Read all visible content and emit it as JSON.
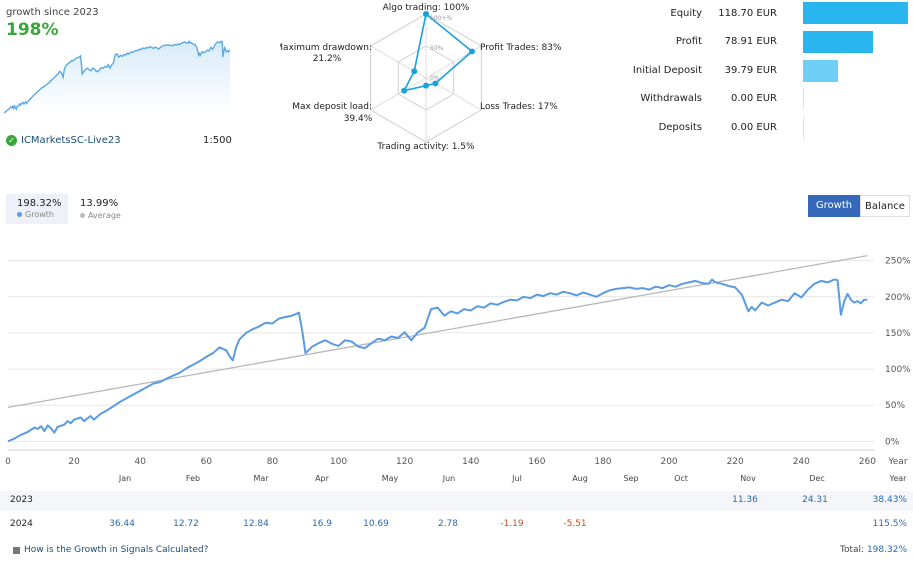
{
  "header": {
    "growth_since": "growth since 2023",
    "growth_value": "198%",
    "account_name": "ICMarketsSC-Live23",
    "leverage": "1:500",
    "mini_chart_color": "#5aa9e6"
  },
  "radar": {
    "labels": {
      "algo": "Algo trading: 100%",
      "profit": "Profit Trades: 83%",
      "loss": "Loss Trades: 17%",
      "activity": "Trading activity: 1.5%",
      "load_name": "Max deposit load:",
      "load_value": "39.4%",
      "drawdown_name": "Maximum drawdown:",
      "drawdown_value": "21.2%"
    },
    "scale_labels": [
      "100+%",
      "50%",
      "0%"
    ],
    "values": [
      100,
      83,
      17,
      1.5,
      39.4,
      21.2
    ],
    "color": "#1aa3d9"
  },
  "stats": [
    {
      "label": "Equity",
      "value": "118.70 EUR",
      "amount": 118.7,
      "color": "#29b6ef"
    },
    {
      "label": "Profit",
      "value": "78.91 EUR",
      "amount": 78.91,
      "color": "#29b6ef"
    },
    {
      "label": "Initial Deposit",
      "value": "39.79 EUR",
      "amount": 39.79,
      "color": "#6fcff5"
    },
    {
      "label": "Withdrawals",
      "value": "0.00 EUR",
      "amount": 0,
      "color": "#cfe9f7"
    },
    {
      "label": "Deposits",
      "value": "0.00 EUR",
      "amount": 0,
      "color": "#cfe9f7"
    }
  ],
  "legend": {
    "growth_value": "198.32%",
    "growth_name": "Growth",
    "average_value": "13.99%",
    "average_name": "Average"
  },
  "toggle": {
    "growth": "Growth",
    "balance": "Balance"
  },
  "chart_data": {
    "type": "line",
    "xlabel": "Year",
    "x_ticks": [
      0,
      20,
      40,
      60,
      80,
      100,
      120,
      140,
      160,
      180,
      200,
      220,
      240,
      260
    ],
    "y_ticks": [
      0,
      50,
      100,
      150,
      200,
      250
    ],
    "y_tick_labels": [
      "0%",
      "50%",
      "100%",
      "150%",
      "200%",
      "250%"
    ],
    "xlim": [
      0,
      262
    ],
    "ylim": [
      -12,
      262
    ],
    "series": [
      {
        "type": "growth",
        "color": "#5b9be0",
        "points": [
          [
            0,
            0
          ],
          [
            2,
            4
          ],
          [
            4,
            9
          ],
          [
            6,
            13
          ],
          [
            8,
            19
          ],
          [
            9,
            17
          ],
          [
            10,
            21
          ],
          [
            11,
            14
          ],
          [
            12,
            22
          ],
          [
            13,
            18
          ],
          [
            14,
            12
          ],
          [
            15,
            20
          ],
          [
            17,
            23
          ],
          [
            18,
            28
          ],
          [
            19,
            25
          ],
          [
            20,
            30
          ],
          [
            22,
            33
          ],
          [
            23,
            28
          ],
          [
            25,
            35
          ],
          [
            26,
            30
          ],
          [
            28,
            38
          ],
          [
            30,
            43
          ],
          [
            32,
            49
          ],
          [
            34,
            55
          ],
          [
            36,
            60
          ],
          [
            38,
            65
          ],
          [
            40,
            70
          ],
          [
            42,
            75
          ],
          [
            44,
            80
          ],
          [
            46,
            82
          ],
          [
            48,
            87
          ],
          [
            50,
            91
          ],
          [
            52,
            95
          ],
          [
            54,
            101
          ],
          [
            56,
            106
          ],
          [
            58,
            111
          ],
          [
            60,
            117
          ],
          [
            62,
            122
          ],
          [
            64,
            130
          ],
          [
            66,
            126
          ],
          [
            67,
            118
          ],
          [
            68,
            112
          ],
          [
            69,
            130
          ],
          [
            70,
            141
          ],
          [
            72,
            150
          ],
          [
            74,
            155
          ],
          [
            76,
            159
          ],
          [
            78,
            164
          ],
          [
            80,
            163
          ],
          [
            82,
            170
          ],
          [
            84,
            172
          ],
          [
            86,
            174
          ],
          [
            88,
            178
          ],
          [
            89,
            153
          ],
          [
            90,
            122
          ],
          [
            92,
            131
          ],
          [
            94,
            136
          ],
          [
            96,
            140
          ],
          [
            98,
            135
          ],
          [
            100,
            132
          ],
          [
            102,
            140
          ],
          [
            104,
            138
          ],
          [
            106,
            131
          ],
          [
            108,
            129
          ],
          [
            110,
            136
          ],
          [
            112,
            142
          ],
          [
            114,
            140
          ],
          [
            116,
            145
          ],
          [
            118,
            143
          ],
          [
            120,
            151
          ],
          [
            122,
            140
          ],
          [
            124,
            151
          ],
          [
            126,
            157
          ],
          [
            128,
            183
          ],
          [
            130,
            185
          ],
          [
            132,
            174
          ],
          [
            134,
            180
          ],
          [
            136,
            177
          ],
          [
            138,
            183
          ],
          [
            140,
            181
          ],
          [
            142,
            187
          ],
          [
            144,
            185
          ],
          [
            146,
            191
          ],
          [
            148,
            189
          ],
          [
            150,
            193
          ],
          [
            152,
            196
          ],
          [
            154,
            195
          ],
          [
            156,
            200
          ],
          [
            158,
            198
          ],
          [
            160,
            203
          ],
          [
            162,
            201
          ],
          [
            164,
            205
          ],
          [
            166,
            203
          ],
          [
            168,
            207
          ],
          [
            170,
            205
          ],
          [
            172,
            202
          ],
          [
            174,
            206
          ],
          [
            176,
            203
          ],
          [
            178,
            200
          ],
          [
            180,
            205
          ],
          [
            182,
            209
          ],
          [
            184,
            211
          ],
          [
            186,
            212
          ],
          [
            188,
            213
          ],
          [
            190,
            211
          ],
          [
            192,
            212
          ],
          [
            194,
            210
          ],
          [
            196,
            214
          ],
          [
            198,
            212
          ],
          [
            200,
            216
          ],
          [
            202,
            214
          ],
          [
            204,
            218
          ],
          [
            206,
            220
          ],
          [
            208,
            222
          ],
          [
            210,
            219
          ],
          [
            212,
            218
          ],
          [
            213,
            224
          ],
          [
            214,
            220
          ],
          [
            216,
            218
          ],
          [
            218,
            215
          ],
          [
            220,
            213
          ],
          [
            222,
            203
          ],
          [
            224,
            180
          ],
          [
            225,
            186
          ],
          [
            226,
            181
          ],
          [
            228,
            192
          ],
          [
            230,
            188
          ],
          [
            232,
            192
          ],
          [
            234,
            196
          ],
          [
            236,
            194
          ],
          [
            238,
            205
          ],
          [
            240,
            199
          ],
          [
            242,
            210
          ],
          [
            244,
            218
          ],
          [
            246,
            222
          ],
          [
            248,
            220
          ],
          [
            250,
            224
          ],
          [
            251,
            223
          ],
          [
            252,
            175
          ],
          [
            253,
            194
          ],
          [
            254,
            204
          ],
          [
            255,
            196
          ],
          [
            256,
            192
          ],
          [
            257,
            194
          ],
          [
            258,
            191
          ],
          [
            259,
            196
          ],
          [
            260,
            196
          ]
        ]
      },
      {
        "type": "trend",
        "color": "#b8b8b8",
        "points": [
          [
            0,
            47
          ],
          [
            260,
            257
          ]
        ]
      }
    ]
  },
  "months": [
    "Jan",
    "Feb",
    "Mar",
    "Apr",
    "May",
    "Jun",
    "Jul",
    "Aug",
    "Sep",
    "Oct",
    "Nov",
    "Dec",
    "Year"
  ],
  "table": {
    "rows": [
      {
        "year": "2023",
        "cells": [
          "",
          "",
          "",
          "",
          "",
          "",
          "",
          "",
          "",
          "",
          "11.36",
          "24.31"
        ],
        "total": "38.43%"
      },
      {
        "year": "2024",
        "cells": [
          "36.44",
          "12.72",
          "12.84",
          "16.9",
          "10.69",
          "2.78",
          "-1.19",
          "-5.51",
          "",
          "",
          "",
          ""
        ],
        "total": "115.5%"
      }
    ],
    "positive_color": "#2a6aad",
    "negative_color": "#d04a1e"
  },
  "footer": {
    "link_text": "How is the Growth in Signals Calculated?",
    "total_label": "Total:",
    "total_value": "198.32%"
  }
}
